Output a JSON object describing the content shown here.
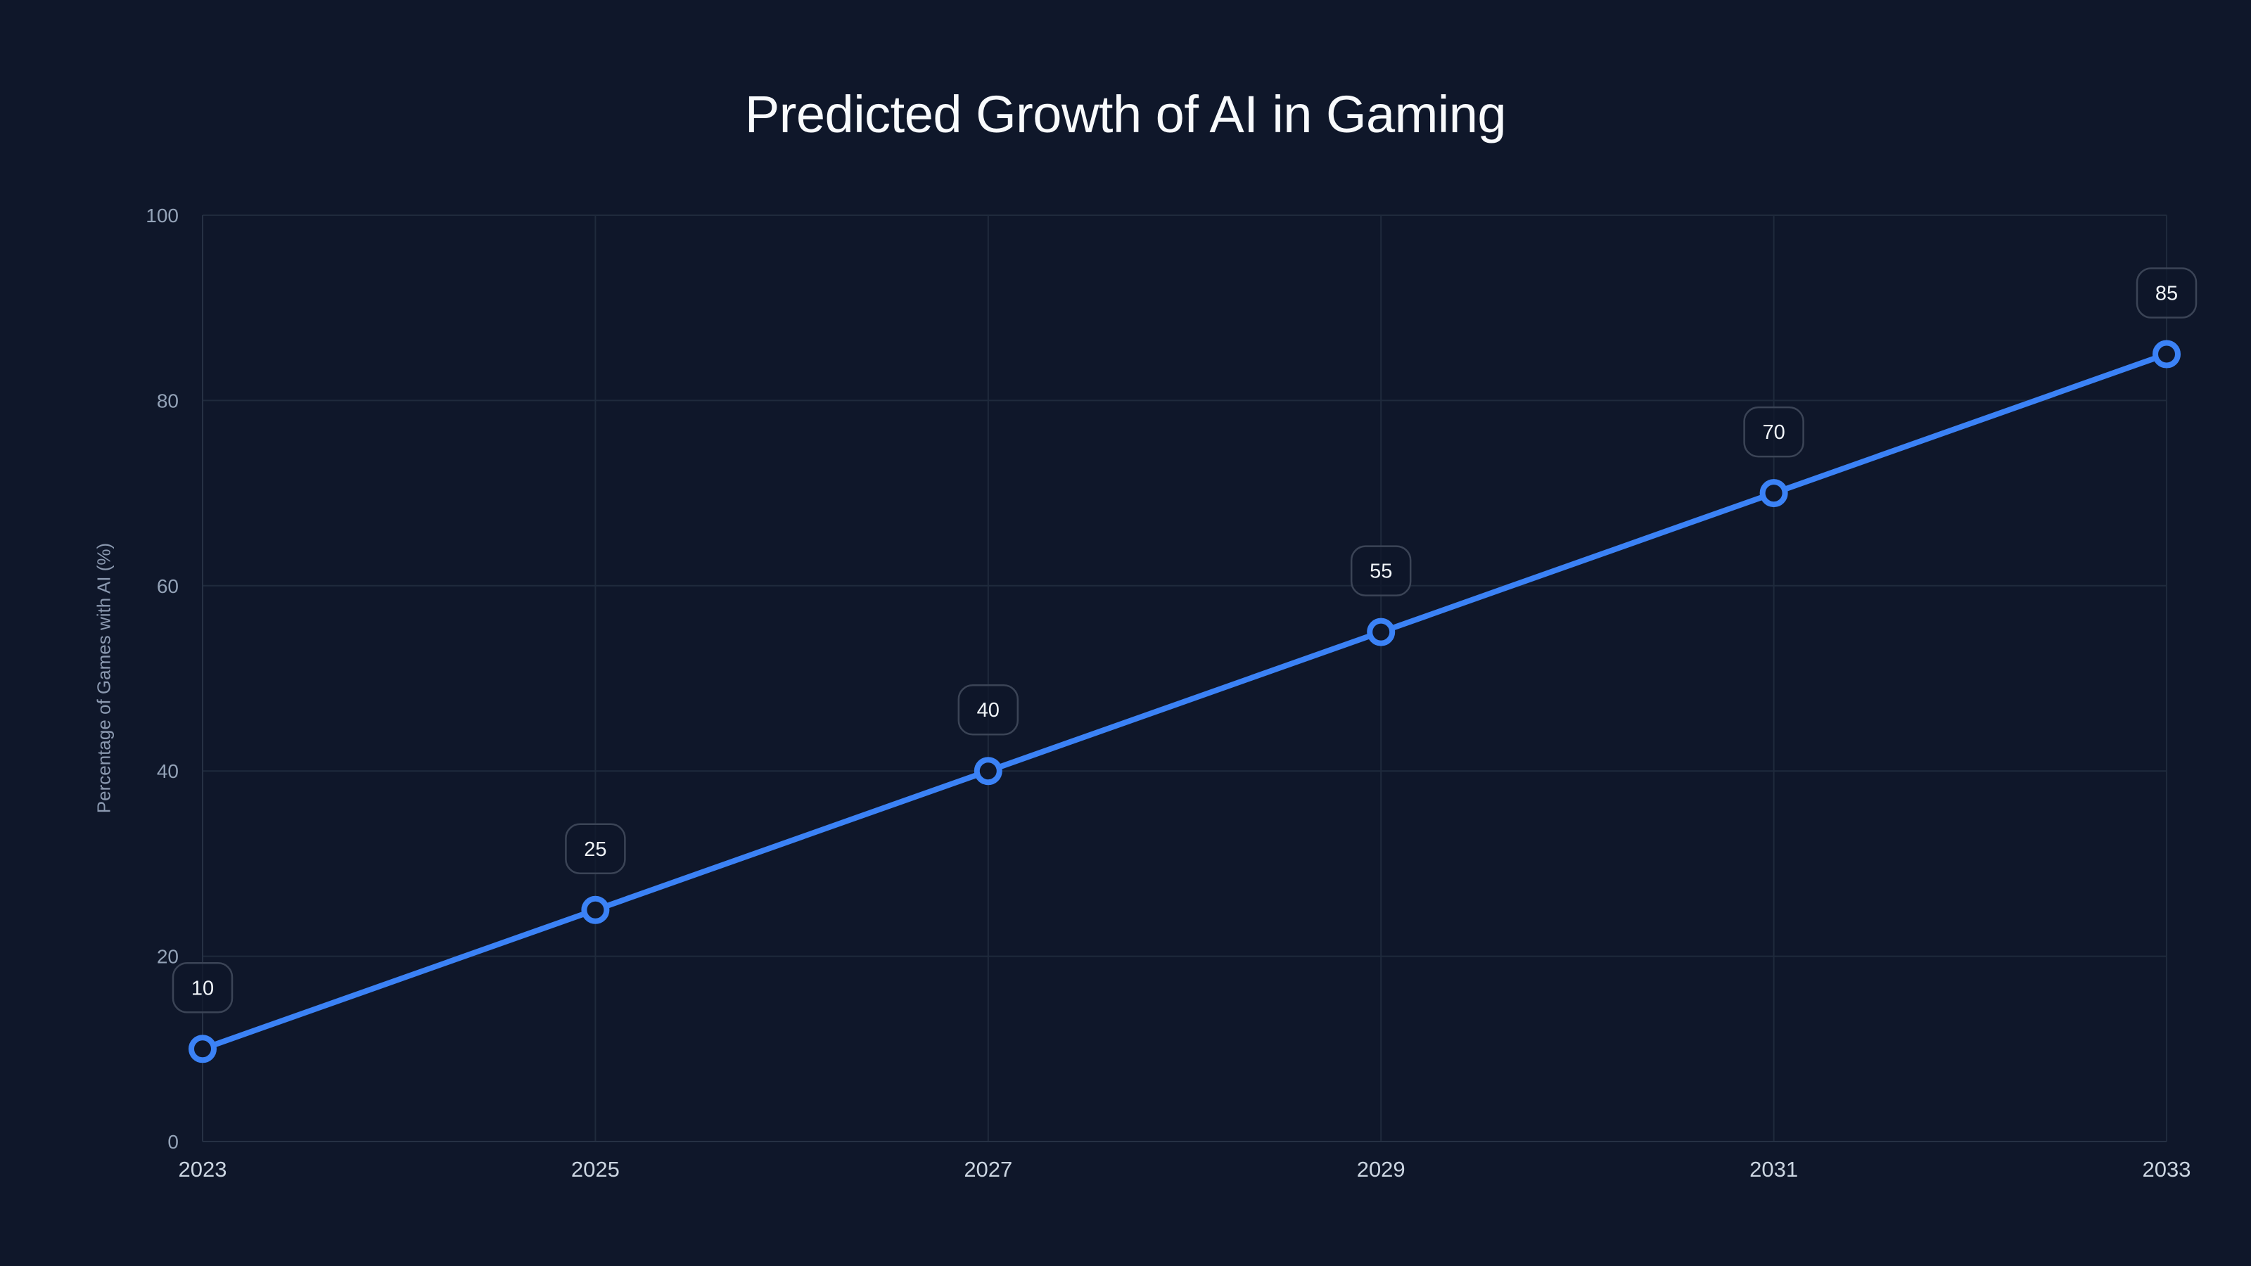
{
  "colors": {
    "background": "#0f172a",
    "series": "#3b82f6",
    "grid": "#1f2a3c",
    "title": "#f8fafc",
    "tick_y": "#94a3b8",
    "tick_x": "#cbd5e1",
    "label_border": "#3b4456"
  },
  "chart_data": {
    "type": "line",
    "title": "Predicted Growth of AI in Gaming",
    "xlabel": "",
    "ylabel": "Percentage of Games with AI (%)",
    "categories": [
      "2023",
      "2025",
      "2027",
      "2029",
      "2031",
      "2033"
    ],
    "series": [
      {
        "name": "Percentage of Games with AI (%)",
        "values": [
          10,
          25,
          40,
          55,
          70,
          85
        ],
        "data_labels": [
          "10",
          "25",
          "40",
          "55",
          "70",
          "85"
        ]
      }
    ],
    "ylim": [
      0,
      100
    ],
    "yticks": [
      0,
      20,
      40,
      60,
      80,
      100
    ],
    "grid": true,
    "legend": "none",
    "markers": "hollow-circle"
  }
}
